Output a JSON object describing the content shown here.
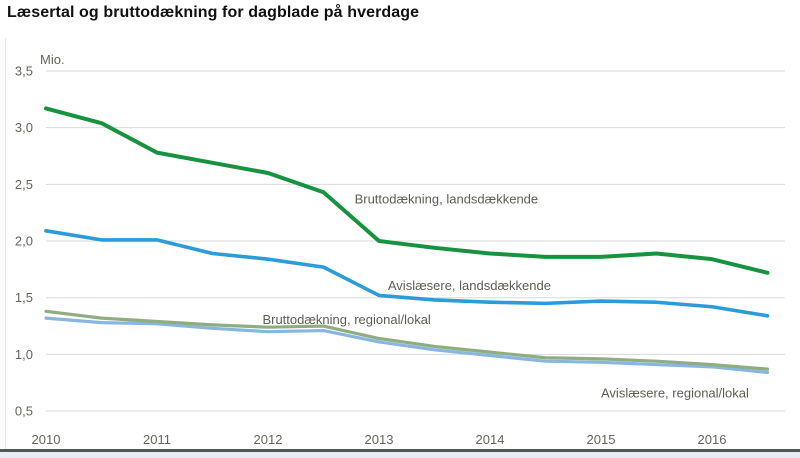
{
  "page": {
    "title": "Læsertal og bruttodækning for dagblade på hverdage"
  },
  "colors": {
    "title_text": "#111111",
    "axis_text": "#65655c",
    "annotation_text": "#5e5e55",
    "gridline": "#d9d9d9",
    "left_border": "#e4e4e4",
    "footer_line": "#4c5a58",
    "footer_strip": "#e4eef4",
    "green_dark": "#17933f",
    "blue": "#2b9cd8",
    "olive_green": "#8fad7f",
    "light_blue": "#87b7e0"
  },
  "chart_data": {
    "type": "line",
    "title": "Læsertal og bruttodækning for dagblade på hverdage",
    "xlabel": "",
    "ylabel": "Mio.",
    "ylim": [
      0.5,
      3.5
    ],
    "xlim": [
      2010,
      2016.65
    ],
    "grid": "horizontal",
    "legend_position": "inline-annotations",
    "x": [
      2010,
      2010.5,
      2011,
      2011.5,
      2012,
      2012.5,
      2013,
      2013.5,
      2014,
      2014.5,
      2015,
      2015.5,
      2016,
      2016.5
    ],
    "x_ticks": [
      "2010",
      "2011",
      "2012",
      "2013",
      "2014",
      "2015",
      "2016"
    ],
    "y_ticks": [
      {
        "value": 3.5,
        "label": "3,5"
      },
      {
        "value": 3.0,
        "label": "3,0"
      },
      {
        "value": 2.5,
        "label": "2,5"
      },
      {
        "value": 2.0,
        "label": "2,0"
      },
      {
        "value": 1.5,
        "label": "1,5"
      },
      {
        "value": 1.0,
        "label": "1,0"
      },
      {
        "value": 0.5,
        "label": "0,5"
      }
    ],
    "series": [
      {
        "name": "Bruttodækning, landsdækkende",
        "color": "#17933f",
        "stroke_width": 4,
        "values": [
          3.17,
          3.04,
          2.78,
          2.69,
          2.6,
          2.43,
          2.0,
          1.94,
          1.89,
          1.86,
          1.86,
          1.89,
          1.84,
          1.72
        ]
      },
      {
        "name": "Avislæsere, landsdækkende",
        "color": "#2b9cd8",
        "stroke_width": 3.6,
        "values": [
          2.09,
          2.01,
          2.01,
          1.89,
          1.84,
          1.77,
          1.52,
          1.48,
          1.46,
          1.45,
          1.47,
          1.46,
          1.42,
          1.34
        ]
      },
      {
        "name": "Bruttodækning, regional/lokal",
        "color": "#8fad7f",
        "stroke_width": 3.2,
        "values": [
          1.38,
          1.32,
          1.29,
          1.26,
          1.24,
          1.25,
          1.14,
          1.07,
          1.02,
          0.97,
          0.96,
          0.94,
          0.91,
          0.87
        ]
      },
      {
        "name": "Avislæsere, regional/lokal",
        "color": "#87b7e0",
        "stroke_width": 3.2,
        "values": [
          1.32,
          1.28,
          1.27,
          1.23,
          1.2,
          1.21,
          1.11,
          1.04,
          0.99,
          0.94,
          0.93,
          0.91,
          0.89,
          0.84
        ]
      }
    ],
    "annotations": [
      {
        "text": "Bruttodækning, landsdækkende",
        "year": 2012.78,
        "value": 2.33
      },
      {
        "text": "Avislæsere, landsdækkende",
        "year": 2013.08,
        "value": 1.57
      },
      {
        "text": "Bruttodækning, regional/lokal",
        "year": 2011.95,
        "value": 1.27
      },
      {
        "text": "Avislæsere, regional/lokal",
        "year": 2015.0,
        "value": 0.62
      }
    ]
  }
}
